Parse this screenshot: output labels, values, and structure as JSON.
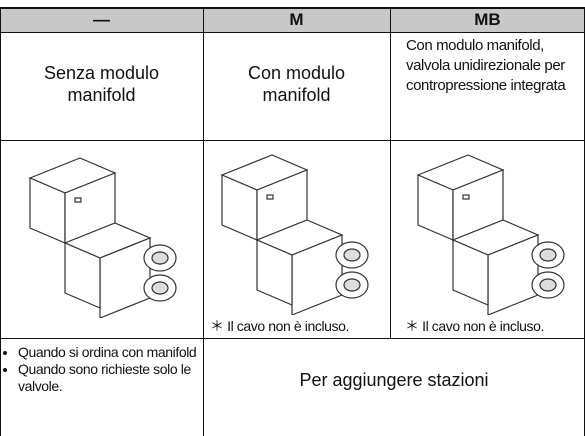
{
  "table": {
    "header": [
      "—",
      "M",
      "MB"
    ],
    "descriptions": [
      "Senza modulo manifold",
      "Con modulo manifold",
      "Con modulo manifold, valvola unidirezionale per contropressione integrata"
    ],
    "image_notes": [
      "＊ Il cavo non è incluso.",
      "＊ Il cavo non è incluso."
    ],
    "usage_notes": [
      "Quando si ordina con manifold",
      "Quando sono richieste solo le valvole."
    ],
    "usage_action": "Per aggiungere stazioni"
  }
}
